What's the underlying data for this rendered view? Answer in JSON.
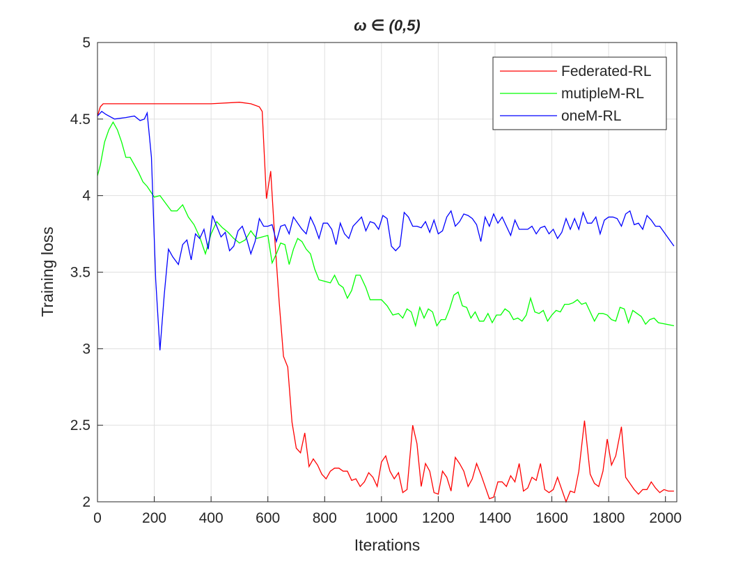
{
  "chart_data": {
    "type": "line",
    "title": "ω ∈ (0,5)",
    "xlabel": "Iterations",
    "ylabel": "Training loss",
    "xlim": [
      0,
      2040
    ],
    "ylim": [
      2,
      5
    ],
    "xticks": [
      0,
      200,
      400,
      600,
      800,
      1000,
      1200,
      1400,
      1600,
      1800,
      2000
    ],
    "yticks": [
      2,
      2.5,
      3,
      3.5,
      4,
      4.5,
      5
    ],
    "grid": true,
    "legend": "top-right",
    "series": [
      {
        "name": "Federated-RL",
        "color": "#ff0000",
        "x": [
          0,
          10,
          20,
          100,
          200,
          300,
          400,
          500,
          540,
          570,
          580,
          595,
          610,
          625,
          640,
          655,
          670,
          685,
          700,
          715,
          730,
          745,
          760,
          775,
          790,
          805,
          820,
          835,
          850,
          865,
          880,
          895,
          910,
          925,
          940,
          955,
          970,
          985,
          1000,
          1015,
          1030,
          1045,
          1060,
          1075,
          1090,
          1110,
          1125,
          1140,
          1155,
          1170,
          1185,
          1200,
          1215,
          1230,
          1245,
          1260,
          1275,
          1290,
          1305,
          1320,
          1335,
          1350,
          1365,
          1380,
          1395,
          1410,
          1425,
          1440,
          1455,
          1470,
          1485,
          1500,
          1515,
          1530,
          1545,
          1560,
          1575,
          1590,
          1605,
          1620,
          1635,
          1650,
          1665,
          1680,
          1695,
          1715,
          1735,
          1750,
          1765,
          1780,
          1795,
          1810,
          1825,
          1845,
          1860,
          1875,
          1890,
          1905,
          1920,
          1935,
          1950,
          1965,
          1980,
          1995,
          2010,
          2030
        ],
        "values": [
          4.52,
          4.58,
          4.6,
          4.6,
          4.6,
          4.6,
          4.6,
          4.61,
          4.6,
          4.58,
          4.55,
          3.98,
          4.16,
          3.7,
          3.3,
          2.95,
          2.88,
          2.52,
          2.35,
          2.32,
          2.45,
          2.23,
          2.28,
          2.24,
          2.18,
          2.15,
          2.2,
          2.22,
          2.22,
          2.2,
          2.2,
          2.14,
          2.15,
          2.1,
          2.13,
          2.19,
          2.16,
          2.1,
          2.26,
          2.3,
          2.2,
          2.15,
          2.19,
          2.06,
          2.08,
          2.5,
          2.38,
          2.1,
          2.25,
          2.2,
          2.06,
          2.05,
          2.2,
          2.16,
          2.07,
          2.29,
          2.25,
          2.2,
          2.1,
          2.15,
          2.25,
          2.18,
          2.1,
          2.02,
          2.03,
          2.13,
          2.13,
          2.1,
          2.17,
          2.13,
          2.25,
          2.07,
          2.09,
          2.16,
          2.14,
          2.25,
          2.08,
          2.06,
          2.08,
          2.16,
          2.08,
          2.0,
          2.07,
          2.06,
          2.2,
          2.53,
          2.18,
          2.12,
          2.1,
          2.2,
          2.41,
          2.24,
          2.3,
          2.49,
          2.16,
          2.12,
          2.08,
          2.05,
          2.08,
          2.08,
          2.13,
          2.09,
          2.06,
          2.08,
          2.07,
          2.07
        ]
      },
      {
        "name": "mutipleM-RL",
        "color": "#00ff00",
        "x": [
          0,
          10,
          25,
          40,
          55,
          70,
          85,
          100,
          115,
          130,
          145,
          160,
          175,
          200,
          220,
          240,
          260,
          280,
          300,
          320,
          340,
          360,
          380,
          400,
          420,
          440,
          460,
          480,
          500,
          520,
          540,
          560,
          580,
          600,
          615,
          630,
          645,
          660,
          675,
          690,
          705,
          720,
          735,
          750,
          765,
          780,
          800,
          820,
          835,
          850,
          865,
          880,
          895,
          910,
          925,
          945,
          960,
          980,
          1000,
          1020,
          1040,
          1060,
          1075,
          1090,
          1105,
          1120,
          1135,
          1150,
          1165,
          1180,
          1195,
          1210,
          1225,
          1240,
          1255,
          1270,
          1285,
          1300,
          1315,
          1330,
          1345,
          1360,
          1375,
          1390,
          1405,
          1420,
          1435,
          1450,
          1465,
          1480,
          1495,
          1510,
          1525,
          1540,
          1555,
          1570,
          1585,
          1600,
          1615,
          1630,
          1645,
          1660,
          1675,
          1690,
          1705,
          1720,
          1735,
          1750,
          1765,
          1780,
          1795,
          1810,
          1825,
          1840,
          1855,
          1870,
          1885,
          1900,
          1915,
          1930,
          1945,
          1960,
          1975,
          2030
        ],
        "values": [
          4.13,
          4.2,
          4.35,
          4.43,
          4.48,
          4.43,
          4.35,
          4.25,
          4.25,
          4.2,
          4.15,
          4.09,
          4.06,
          3.99,
          4.0,
          3.95,
          3.9,
          3.9,
          3.94,
          3.86,
          3.81,
          3.73,
          3.62,
          3.75,
          3.83,
          3.79,
          3.76,
          3.72,
          3.69,
          3.71,
          3.77,
          3.72,
          3.73,
          3.74,
          3.56,
          3.62,
          3.69,
          3.68,
          3.55,
          3.65,
          3.72,
          3.7,
          3.65,
          3.62,
          3.52,
          3.45,
          3.44,
          3.43,
          3.48,
          3.42,
          3.4,
          3.33,
          3.38,
          3.48,
          3.48,
          3.4,
          3.32,
          3.32,
          3.32,
          3.28,
          3.22,
          3.23,
          3.2,
          3.26,
          3.24,
          3.15,
          3.27,
          3.2,
          3.26,
          3.24,
          3.15,
          3.19,
          3.19,
          3.26,
          3.35,
          3.37,
          3.28,
          3.27,
          3.2,
          3.24,
          3.18,
          3.18,
          3.23,
          3.17,
          3.22,
          3.22,
          3.26,
          3.24,
          3.19,
          3.2,
          3.18,
          3.22,
          3.33,
          3.24,
          3.23,
          3.25,
          3.18,
          3.22,
          3.25,
          3.24,
          3.29,
          3.29,
          3.3,
          3.32,
          3.29,
          3.3,
          3.24,
          3.18,
          3.23,
          3.23,
          3.22,
          3.19,
          3.18,
          3.27,
          3.26,
          3.17,
          3.25,
          3.23,
          3.21,
          3.16,
          3.19,
          3.2,
          3.17,
          3.15
        ]
      },
      {
        "name": "oneM-RL",
        "color": "#0000ff",
        "x": [
          0,
          15,
          30,
          60,
          100,
          130,
          150,
          165,
          175,
          190,
          205,
          220,
          235,
          250,
          265,
          285,
          300,
          315,
          330,
          345,
          360,
          375,
          390,
          405,
          420,
          435,
          450,
          465,
          480,
          495,
          510,
          525,
          540,
          555,
          570,
          585,
          600,
          615,
          630,
          645,
          660,
          675,
          690,
          705,
          720,
          735,
          750,
          765,
          780,
          795,
          810,
          825,
          840,
          855,
          870,
          885,
          900,
          915,
          930,
          945,
          960,
          975,
          990,
          1005,
          1020,
          1035,
          1050,
          1065,
          1080,
          1095,
          1110,
          1125,
          1140,
          1155,
          1170,
          1185,
          1200,
          1215,
          1230,
          1245,
          1260,
          1275,
          1290,
          1305,
          1320,
          1335,
          1350,
          1365,
          1380,
          1395,
          1410,
          1425,
          1440,
          1455,
          1470,
          1485,
          1500,
          1515,
          1530,
          1545,
          1560,
          1575,
          1590,
          1605,
          1620,
          1635,
          1650,
          1665,
          1680,
          1695,
          1710,
          1725,
          1740,
          1755,
          1770,
          1785,
          1800,
          1815,
          1830,
          1845,
          1860,
          1875,
          1890,
          1905,
          1920,
          1935,
          1950,
          1965,
          1980,
          2030
        ],
        "values": [
          4.52,
          4.55,
          4.53,
          4.5,
          4.51,
          4.52,
          4.49,
          4.5,
          4.54,
          4.25,
          3.45,
          2.99,
          3.35,
          3.65,
          3.6,
          3.55,
          3.68,
          3.71,
          3.58,
          3.75,
          3.72,
          3.78,
          3.65,
          3.87,
          3.8,
          3.73,
          3.76,
          3.64,
          3.67,
          3.77,
          3.8,
          3.72,
          3.62,
          3.7,
          3.85,
          3.8,
          3.8,
          3.81,
          3.7,
          3.8,
          3.81,
          3.75,
          3.86,
          3.82,
          3.78,
          3.75,
          3.86,
          3.8,
          3.72,
          3.82,
          3.82,
          3.78,
          3.68,
          3.82,
          3.75,
          3.72,
          3.8,
          3.83,
          3.86,
          3.77,
          3.83,
          3.82,
          3.78,
          3.87,
          3.85,
          3.67,
          3.64,
          3.67,
          3.89,
          3.86,
          3.8,
          3.8,
          3.79,
          3.83,
          3.76,
          3.84,
          3.75,
          3.77,
          3.86,
          3.9,
          3.8,
          3.83,
          3.88,
          3.87,
          3.85,
          3.81,
          3.7,
          3.86,
          3.8,
          3.88,
          3.82,
          3.86,
          3.8,
          3.74,
          3.84,
          3.78,
          3.78,
          3.78,
          3.8,
          3.75,
          3.79,
          3.8,
          3.75,
          3.78,
          3.72,
          3.76,
          3.85,
          3.78,
          3.85,
          3.78,
          3.89,
          3.82,
          3.82,
          3.86,
          3.75,
          3.84,
          3.86,
          3.86,
          3.85,
          3.8,
          3.88,
          3.9,
          3.81,
          3.82,
          3.78,
          3.87,
          3.84,
          3.8,
          3.8,
          3.67
        ]
      }
    ]
  }
}
